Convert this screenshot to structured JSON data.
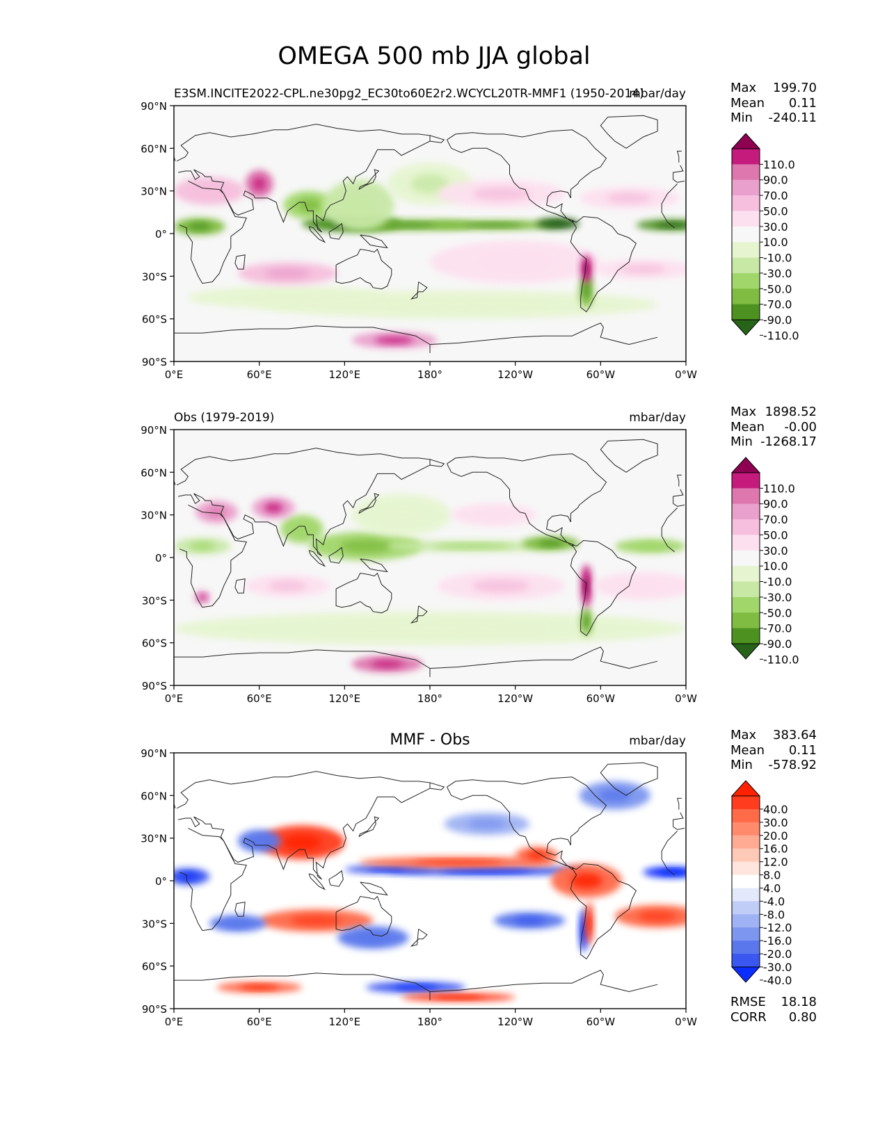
{
  "figure": {
    "title": "OMEGA 500 mb JJA global"
  },
  "axes": {
    "lat_ticks": [
      "90°N",
      "60°N",
      "30°N",
      "0°",
      "30°S",
      "60°S",
      "90°S"
    ],
    "lon_ticks": [
      "0°E",
      "60°E",
      "120°E",
      "180°",
      "120°W",
      "60°W",
      "0°W"
    ]
  },
  "colors": {
    "ocean_bg": "#f7f7f7",
    "coast": "#222222",
    "piyg": [
      "#276419",
      "#4d9221",
      "#7fbc41",
      "#a1d76a",
      "#c8e8a6",
      "#e6f5d0",
      "#f7f7f7",
      "#fde0ef",
      "#f6bfdd",
      "#eaa0cc",
      "#de77ae",
      "#c51b7d",
      "#8e0152"
    ],
    "bwr": [
      "#0b2dff",
      "#3a57f0",
      "#5a78ec",
      "#7d96ef",
      "#9fb2f3",
      "#c0cef7",
      "#e3e9fb",
      "#ffffff",
      "#ffe5dd",
      "#ffc9b8",
      "#ffab93",
      "#ff8a6c",
      "#ff6a48",
      "#ff3c1e",
      "#ff2200"
    ]
  },
  "chart_data": [
    {
      "type": "heatmap",
      "name": "model",
      "title_left": "E3SM.INCITE2022-CPL.ne30pg2_EC30to60E2r2.WCYCL20TR-MMF1 (1950-2014)",
      "title_center": "",
      "units": "mbar/day",
      "stats": {
        "max_label": "Max",
        "max": "199.70",
        "mean_label": "Mean",
        "mean": "0.11",
        "min_label": "Min",
        "min": "-240.11"
      },
      "colorbar": {
        "cmap": "piyg",
        "levels": [
          "110.0",
          "90.0",
          "70.0",
          "50.0",
          "30.0",
          "10.0",
          "-10.0",
          "-30.0",
          "-50.0",
          "-70.0",
          "-90.0",
          "-110.0"
        ]
      },
      "xlim": [
        0,
        360
      ],
      "ylim": [
        -90,
        90
      ],
      "features": [
        {
          "lon": 125,
          "lat": 7,
          "rx": 35,
          "ry": 6,
          "v": -90
        },
        {
          "lon": 165,
          "lat": 6,
          "rx": 45,
          "ry": 4,
          "v": -80
        },
        {
          "lon": 225,
          "lat": 6,
          "rx": 45,
          "ry": 3.5,
          "v": -80
        },
        {
          "lon": 270,
          "lat": 7,
          "rx": 15,
          "ry": 4,
          "v": -110
        },
        {
          "lon": 350,
          "lat": 6,
          "rx": 25,
          "ry": 4,
          "v": -90
        },
        {
          "lon": 18,
          "lat": 5,
          "rx": 18,
          "ry": 6,
          "v": -70
        },
        {
          "lon": 95,
          "lat": 20,
          "rx": 18,
          "ry": 10,
          "v": -60
        },
        {
          "lon": 130,
          "lat": 20,
          "rx": 25,
          "ry": 18,
          "v": -35
        },
        {
          "lon": 180,
          "lat": 35,
          "rx": 30,
          "ry": 15,
          "v": -25
        },
        {
          "lon": 200,
          "lat": -50,
          "rx": 140,
          "ry": 10,
          "v": -20
        },
        {
          "lon": 80,
          "lat": -45,
          "rx": 70,
          "ry": 8,
          "v": -20
        },
        {
          "lon": 290,
          "lat": -40,
          "rx": 5,
          "ry": 12,
          "v": -70
        },
        {
          "lon": 60,
          "lat": 35,
          "rx": 10,
          "ry": 10,
          "v": 80
        },
        {
          "lon": 25,
          "lat": 30,
          "rx": 25,
          "ry": 10,
          "v": 35
        },
        {
          "lon": 80,
          "lat": -28,
          "rx": 35,
          "ry": 8,
          "v": 45
        },
        {
          "lon": 155,
          "lat": -75,
          "rx": 30,
          "ry": 6,
          "v": 70
        },
        {
          "lon": 330,
          "lat": -25,
          "rx": 35,
          "ry": 7,
          "v": 30
        },
        {
          "lon": 240,
          "lat": -20,
          "rx": 60,
          "ry": 15,
          "v": 20
        },
        {
          "lon": 230,
          "lat": 28,
          "rx": 45,
          "ry": 10,
          "v": 25
        },
        {
          "lon": 320,
          "lat": 25,
          "rx": 35,
          "ry": 8,
          "v": 30
        },
        {
          "lon": 290,
          "lat": -25,
          "rx": 4,
          "ry": 10,
          "v": 100
        }
      ]
    },
    {
      "type": "heatmap",
      "name": "obs",
      "title_left": "Obs (1979-2019)",
      "title_center": "",
      "units": "mbar/day",
      "stats": {
        "max_label": "Max",
        "max": "1898.52",
        "mean_label": "Mean",
        "mean": "-0.00",
        "min_label": "Min",
        "min": "-1268.17"
      },
      "colorbar": {
        "cmap": "piyg",
        "levels": [
          "110.0",
          "90.0",
          "70.0",
          "50.0",
          "30.0",
          "10.0",
          "-10.0",
          "-30.0",
          "-50.0",
          "-70.0",
          "-90.0",
          "-110.0"
        ]
      },
      "xlim": [
        0,
        360
      ],
      "ylim": [
        -90,
        90
      ],
      "features": [
        {
          "lon": 135,
          "lat": 8,
          "rx": 40,
          "ry": 10,
          "v": -60
        },
        {
          "lon": 210,
          "lat": 8,
          "rx": 60,
          "ry": 4,
          "v": -45
        },
        {
          "lon": 265,
          "lat": 10,
          "rx": 20,
          "ry": 5,
          "v": -70
        },
        {
          "lon": 335,
          "lat": 8,
          "rx": 25,
          "ry": 5,
          "v": -50
        },
        {
          "lon": 20,
          "lat": 8,
          "rx": 20,
          "ry": 6,
          "v": -40
        },
        {
          "lon": 90,
          "lat": 20,
          "rx": 15,
          "ry": 10,
          "v": -50
        },
        {
          "lon": 160,
          "lat": 30,
          "rx": 35,
          "ry": 15,
          "v": -20
        },
        {
          "lon": 180,
          "lat": -50,
          "rx": 180,
          "ry": 12,
          "v": -20
        },
        {
          "lon": 290,
          "lat": -45,
          "rx": 4,
          "ry": 10,
          "v": -80
        },
        {
          "lon": 30,
          "lat": 32,
          "rx": 15,
          "ry": 8,
          "v": 60
        },
        {
          "lon": 70,
          "lat": 35,
          "rx": 15,
          "ry": 8,
          "v": 70
        },
        {
          "lon": 80,
          "lat": -20,
          "rx": 30,
          "ry": 8,
          "v": 25
        },
        {
          "lon": 150,
          "lat": -75,
          "rx": 25,
          "ry": 6,
          "v": 80
        },
        {
          "lon": 230,
          "lat": -20,
          "rx": 45,
          "ry": 10,
          "v": 25
        },
        {
          "lon": 290,
          "lat": -20,
          "rx": 4,
          "ry": 15,
          "v": 100
        },
        {
          "lon": 330,
          "lat": -20,
          "rx": 35,
          "ry": 10,
          "v": 20
        },
        {
          "lon": 225,
          "lat": 30,
          "rx": 30,
          "ry": 8,
          "v": 20
        },
        {
          "lon": 20,
          "lat": -28,
          "rx": 6,
          "ry": 5,
          "v": 70
        }
      ]
    },
    {
      "type": "heatmap",
      "name": "diff",
      "title_left": "",
      "title_center": "MMF - Obs",
      "units": "mbar/day",
      "stats": {
        "max_label": "Max",
        "max": "383.64",
        "mean_label": "Mean",
        "mean": "0.11",
        "min_label": "Min",
        "min": "-578.92"
      },
      "extra_stats": {
        "rmse_label": "RMSE",
        "rmse": "18.18",
        "corr_label": "CORR",
        "corr": "0.80"
      },
      "colorbar": {
        "cmap": "bwr",
        "levels": [
          "40.0",
          "30.0",
          "20.0",
          "16.0",
          "12.0",
          "8.0",
          "4.0",
          "-4.0",
          "-8.0",
          "-12.0",
          "-16.0",
          "-20.0",
          "-30.0",
          "-40.0"
        ]
      },
      "xlim": [
        0,
        360
      ],
      "ylim": [
        -90,
        90
      ],
      "features": [
        {
          "lon": 220,
          "lat": 7,
          "rx": 70,
          "ry": 3.5,
          "v": -35
        },
        {
          "lon": 150,
          "lat": 8,
          "rx": 30,
          "ry": 3,
          "v": -30
        },
        {
          "lon": 350,
          "lat": 6,
          "rx": 20,
          "ry": 4,
          "v": -40
        },
        {
          "lon": 10,
          "lat": 3,
          "rx": 15,
          "ry": 6,
          "v": -35
        },
        {
          "lon": 200,
          "lat": 13,
          "rx": 70,
          "ry": 4,
          "v": 25
        },
        {
          "lon": 290,
          "lat": 0,
          "rx": 25,
          "ry": 12,
          "v": 30
        },
        {
          "lon": 340,
          "lat": -25,
          "rx": 30,
          "ry": 8,
          "v": 25
        },
        {
          "lon": 90,
          "lat": 27,
          "rx": 30,
          "ry": 12,
          "v": 35
        },
        {
          "lon": 255,
          "lat": 18,
          "rx": 15,
          "ry": 6,
          "v": 30
        },
        {
          "lon": 100,
          "lat": -28,
          "rx": 40,
          "ry": 8,
          "v": 25
        },
        {
          "lon": 250,
          "lat": -28,
          "rx": 25,
          "ry": 6,
          "v": -25
        },
        {
          "lon": 45,
          "lat": -30,
          "rx": 20,
          "ry": 6,
          "v": -20
        },
        {
          "lon": 140,
          "lat": -40,
          "rx": 25,
          "ry": 8,
          "v": -20
        },
        {
          "lon": 288,
          "lat": -35,
          "rx": 3,
          "ry": 15,
          "v": -40
        },
        {
          "lon": 292,
          "lat": -30,
          "rx": 3,
          "ry": 15,
          "v": 40
        },
        {
          "lon": 60,
          "lat": -75,
          "rx": 30,
          "ry": 4,
          "v": 30
        },
        {
          "lon": 170,
          "lat": -75,
          "rx": 35,
          "ry": 4,
          "v": -30
        },
        {
          "lon": 200,
          "lat": -82,
          "rx": 40,
          "ry": 3,
          "v": 35
        },
        {
          "lon": 60,
          "lat": 28,
          "rx": 15,
          "ry": 8,
          "v": -20
        },
        {
          "lon": 220,
          "lat": 40,
          "rx": 30,
          "ry": 8,
          "v": -12
        },
        {
          "lon": 310,
          "lat": 60,
          "rx": 25,
          "ry": 10,
          "v": -16
        }
      ]
    }
  ]
}
